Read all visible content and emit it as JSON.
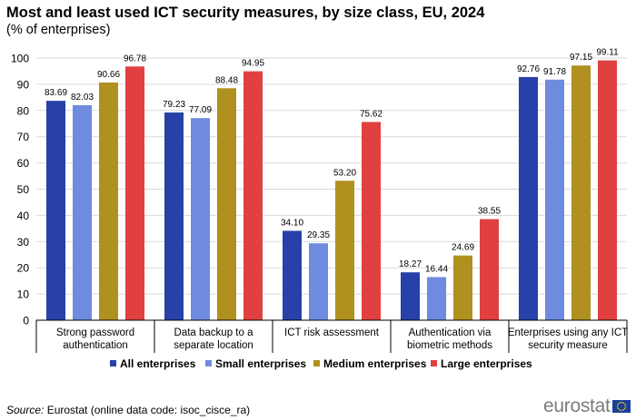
{
  "title": "Most and least used ICT security measures, by size class, EU, 2024",
  "subtitle": "(% of enterprises)",
  "source": {
    "label": "Source:",
    "text": "Eurostat (online data code: isoc_cisce_ra)"
  },
  "logo_text": "eurostat",
  "colors": {
    "all": "#2741a8",
    "small": "#6f8be0",
    "medium": "#b0901e",
    "large": "#e0403f"
  },
  "chart_data": {
    "type": "bar",
    "categories": [
      [
        "Strong password",
        "authentication"
      ],
      [
        "Data backup to a",
        "separate location"
      ],
      [
        "ICT risk assessment"
      ],
      [
        "Authentication via",
        "biometric methods"
      ],
      [
        "Enterprises using any ICT",
        "security measure"
      ]
    ],
    "series": [
      {
        "name": "All enterprises",
        "values": [
          83.69,
          79.23,
          34.1,
          18.27,
          92.76
        ],
        "labels": [
          "83.69",
          "79.23",
          "34.10",
          "18.27",
          "92.76"
        ]
      },
      {
        "name": "Small enterprises",
        "values": [
          82.03,
          77.09,
          29.35,
          16.44,
          91.78
        ],
        "labels": [
          "82.03",
          "77.09",
          "29.35",
          "16.44",
          "91.78"
        ]
      },
      {
        "name": "Medium enterprises",
        "values": [
          90.66,
          88.48,
          53.2,
          24.69,
          97.15
        ],
        "labels": [
          "90.66",
          "88.48",
          "53.20",
          "24.69",
          "97.15"
        ]
      },
      {
        "name": "Large enterprises",
        "values": [
          96.78,
          94.95,
          75.62,
          38.55,
          99.11
        ],
        "labels": [
          "96.78",
          "94.95",
          "75.62",
          "38.55",
          "99.11"
        ]
      }
    ],
    "ylim": [
      0,
      100
    ],
    "yticks": [
      0,
      10,
      20,
      30,
      40,
      50,
      60,
      70,
      80,
      90,
      100
    ],
    "grid": true,
    "legend_position": "bottom"
  }
}
